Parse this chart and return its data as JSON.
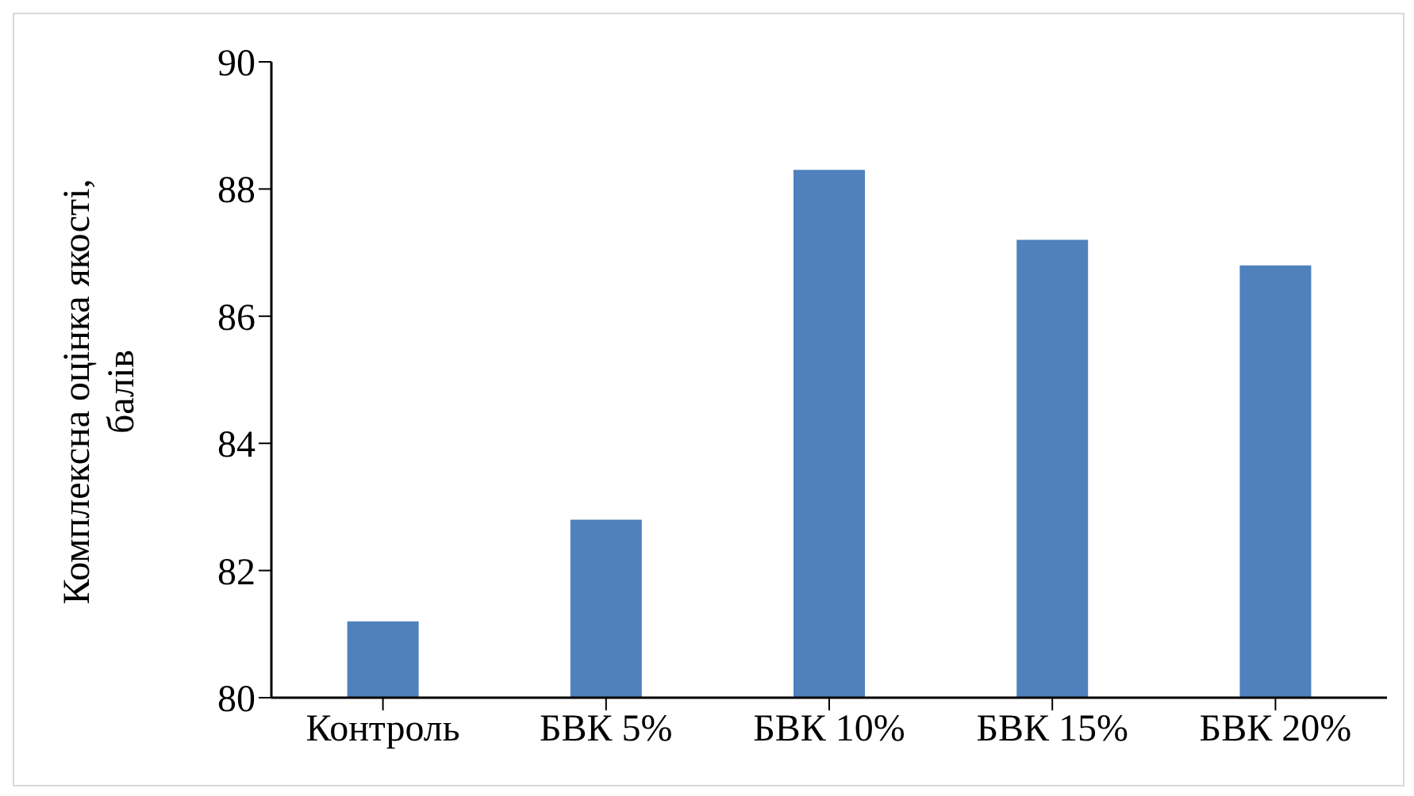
{
  "chart_data": {
    "type": "bar",
    "ylabel": "Комплексна оцінка якості, балів",
    "categories": [
      "Контроль",
      "БВК 5%",
      "БВК 10%",
      "БВК 15%",
      "БВК 20%"
    ],
    "values": [
      81.2,
      82.8,
      88.3,
      87.2,
      86.8
    ],
    "color": "#4f81bd",
    "ylim": [
      80,
      90
    ],
    "yticks": [
      80,
      82,
      84,
      86,
      88,
      90
    ],
    "grid": false
  }
}
